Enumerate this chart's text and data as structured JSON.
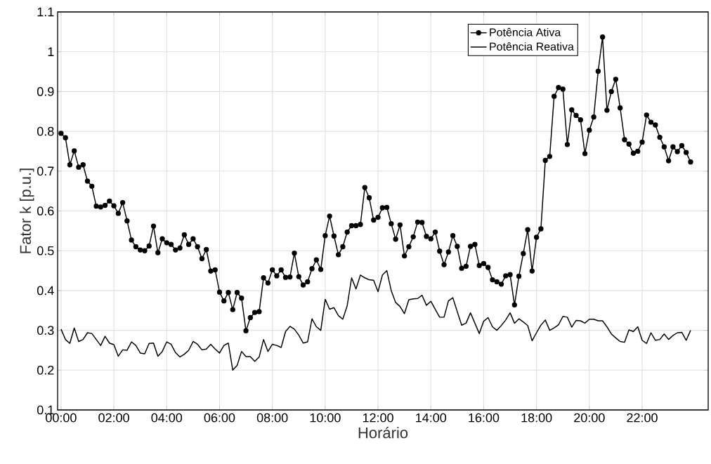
{
  "chart_data": {
    "type": "line",
    "xlabel": "Horário",
    "ylabel": "Fator k [p.u.]",
    "x": [
      0,
      0.1667,
      0.3333,
      0.5,
      0.6667,
      0.8333,
      1,
      1.1667,
      1.3333,
      1.5,
      1.6667,
      1.8333,
      2,
      2.1667,
      2.3333,
      2.5,
      2.6667,
      2.8333,
      3,
      3.1667,
      3.3333,
      3.5,
      3.6667,
      3.8333,
      4,
      4.1667,
      4.3333,
      4.5,
      4.6667,
      4.8333,
      5,
      5.1667,
      5.3333,
      5.5,
      5.6667,
      5.8333,
      6,
      6.1667,
      6.3333,
      6.5,
      6.6667,
      6.8333,
      7,
      7.1667,
      7.3333,
      7.5,
      7.6667,
      7.8333,
      8,
      8.1667,
      8.3333,
      8.5,
      8.6667,
      8.8333,
      9,
      9.1667,
      9.3333,
      9.5,
      9.6667,
      9.8333,
      10,
      10.1667,
      10.3333,
      10.5,
      10.6667,
      10.8333,
      11,
      11.1667,
      11.3333,
      11.5,
      11.6667,
      11.8333,
      12,
      12.1667,
      12.3333,
      12.5,
      12.6667,
      12.8333,
      13,
      13.1667,
      13.3333,
      13.5,
      13.6667,
      13.8333,
      14,
      14.1667,
      14.3333,
      14.5,
      14.6667,
      14.8333,
      15,
      15.1667,
      15.3333,
      15.5,
      15.6667,
      15.8333,
      16,
      16.1667,
      16.3333,
      16.5,
      16.6667,
      16.8333,
      17,
      17.1667,
      17.3333,
      17.5,
      17.6667,
      17.8333,
      18,
      18.1667,
      18.3333,
      18.5,
      18.6667,
      18.8333,
      19,
      19.1667,
      19.3333,
      19.5,
      19.6667,
      19.8333,
      20,
      20.1667,
      20.3333,
      20.5,
      20.6667,
      20.8333,
      21,
      21.1667,
      21.3333,
      21.5,
      21.6667,
      21.8333,
      22,
      22.1667,
      22.3333,
      22.5,
      22.6667,
      22.8333,
      23,
      23.1667,
      23.3333,
      23.5,
      23.6667,
      23.8333
    ],
    "series": [
      {
        "name": "Potência Ativa",
        "color": "#000000",
        "marker": "circle",
        "values": [
          0.795,
          0.784,
          0.716,
          0.751,
          0.71,
          0.716,
          0.675,
          0.662,
          0.612,
          0.61,
          0.614,
          0.625,
          0.613,
          0.594,
          0.621,
          0.575,
          0.527,
          0.51,
          0.502,
          0.5,
          0.512,
          0.562,
          0.495,
          0.53,
          0.52,
          0.516,
          0.502,
          0.507,
          0.54,
          0.516,
          0.53,
          0.51,
          0.48,
          0.503,
          0.449,
          0.452,
          0.396,
          0.374,
          0.395,
          0.352,
          0.395,
          0.381,
          0.299,
          0.332,
          0.345,
          0.347,
          0.432,
          0.419,
          0.452,
          0.437,
          0.452,
          0.433,
          0.434,
          0.494,
          0.435,
          0.414,
          0.422,
          0.455,
          0.477,
          0.453,
          0.538,
          0.587,
          0.537,
          0.49,
          0.51,
          0.547,
          0.563,
          0.563,
          0.566,
          0.659,
          0.633,
          0.577,
          0.584,
          0.608,
          0.609,
          0.568,
          0.529,
          0.565,
          0.487,
          0.51,
          0.535,
          0.572,
          0.571,
          0.536,
          0.53,
          0.547,
          0.499,
          0.465,
          0.497,
          0.538,
          0.511,
          0.456,
          0.461,
          0.511,
          0.516,
          0.463,
          0.468,
          0.458,
          0.427,
          0.422,
          0.416,
          0.437,
          0.44,
          0.364,
          0.436,
          0.493,
          0.553,
          0.449,
          0.534,
          0.555,
          0.727,
          0.737,
          0.888,
          0.91,
          0.906,
          0.767,
          0.854,
          0.84,
          0.829,
          0.744,
          0.803,
          0.836,
          0.951,
          1.037,
          0.853,
          0.9,
          0.931,
          0.859,
          0.779,
          0.768,
          0.745,
          0.75,
          0.773,
          0.841,
          0.823,
          0.816,
          0.785,
          0.761,
          0.726,
          0.761,
          0.749,
          0.764,
          0.747,
          0.723
        ]
      },
      {
        "name": "Potência Reativa",
        "color": "#000000",
        "marker": "none",
        "values": [
          0.303,
          0.277,
          0.267,
          0.306,
          0.272,
          0.277,
          0.294,
          0.292,
          0.277,
          0.262,
          0.285,
          0.268,
          0.264,
          0.235,
          0.251,
          0.25,
          0.271,
          0.262,
          0.243,
          0.241,
          0.267,
          0.268,
          0.235,
          0.247,
          0.271,
          0.265,
          0.244,
          0.233,
          0.24,
          0.25,
          0.272,
          0.265,
          0.251,
          0.253,
          0.265,
          0.253,
          0.243,
          0.262,
          0.268,
          0.2,
          0.212,
          0.247,
          0.234,
          0.234,
          0.222,
          0.233,
          0.277,
          0.247,
          0.265,
          0.262,
          0.257,
          0.297,
          0.31,
          0.303,
          0.288,
          0.268,
          0.271,
          0.329,
          0.309,
          0.3,
          0.378,
          0.353,
          0.357,
          0.337,
          0.328,
          0.362,
          0.432,
          0.404,
          0.439,
          0.432,
          0.427,
          0.426,
          0.397,
          0.439,
          0.45,
          0.4,
          0.37,
          0.36,
          0.342,
          0.377,
          0.379,
          0.38,
          0.388,
          0.363,
          0.373,
          0.353,
          0.333,
          0.333,
          0.374,
          0.382,
          0.347,
          0.313,
          0.318,
          0.344,
          0.318,
          0.292,
          0.323,
          0.332,
          0.309,
          0.3,
          0.312,
          0.326,
          0.344,
          0.318,
          0.329,
          0.321,
          0.312,
          0.274,
          0.294,
          0.313,
          0.326,
          0.3,
          0.306,
          0.314,
          0.335,
          0.333,
          0.308,
          0.325,
          0.324,
          0.318,
          0.328,
          0.328,
          0.324,
          0.324,
          0.309,
          0.291,
          0.281,
          0.272,
          0.27,
          0.301,
          0.297,
          0.309,
          0.275,
          0.267,
          0.294,
          0.275,
          0.277,
          0.291,
          0.277,
          0.287,
          0.294,
          0.295,
          0.275,
          0.3
        ]
      }
    ],
    "xlim": [
      -0.13,
      24.5
    ],
    "ylim": [
      0.1,
      1.1
    ],
    "xticks": [
      {
        "value": 0,
        "label": "00:00"
      },
      {
        "value": 2,
        "label": "02:00"
      },
      {
        "value": 4,
        "label": "04:00"
      },
      {
        "value": 6,
        "label": "06:00"
      },
      {
        "value": 8,
        "label": "08:00"
      },
      {
        "value": 10,
        "label": "10:00"
      },
      {
        "value": 12,
        "label": "12:00"
      },
      {
        "value": 14,
        "label": "14:00"
      },
      {
        "value": 16,
        "label": "16:00"
      },
      {
        "value": 18,
        "label": "18:00"
      },
      {
        "value": 20,
        "label": "20:00"
      },
      {
        "value": 22,
        "label": "22:00"
      }
    ],
    "yticks": [
      0.1,
      0.2,
      0.3,
      0.4,
      0.5,
      0.6,
      0.7,
      0.8,
      0.9,
      1,
      1.1
    ],
    "grid": true,
    "legend": "top right",
    "line_style": "solid"
  }
}
